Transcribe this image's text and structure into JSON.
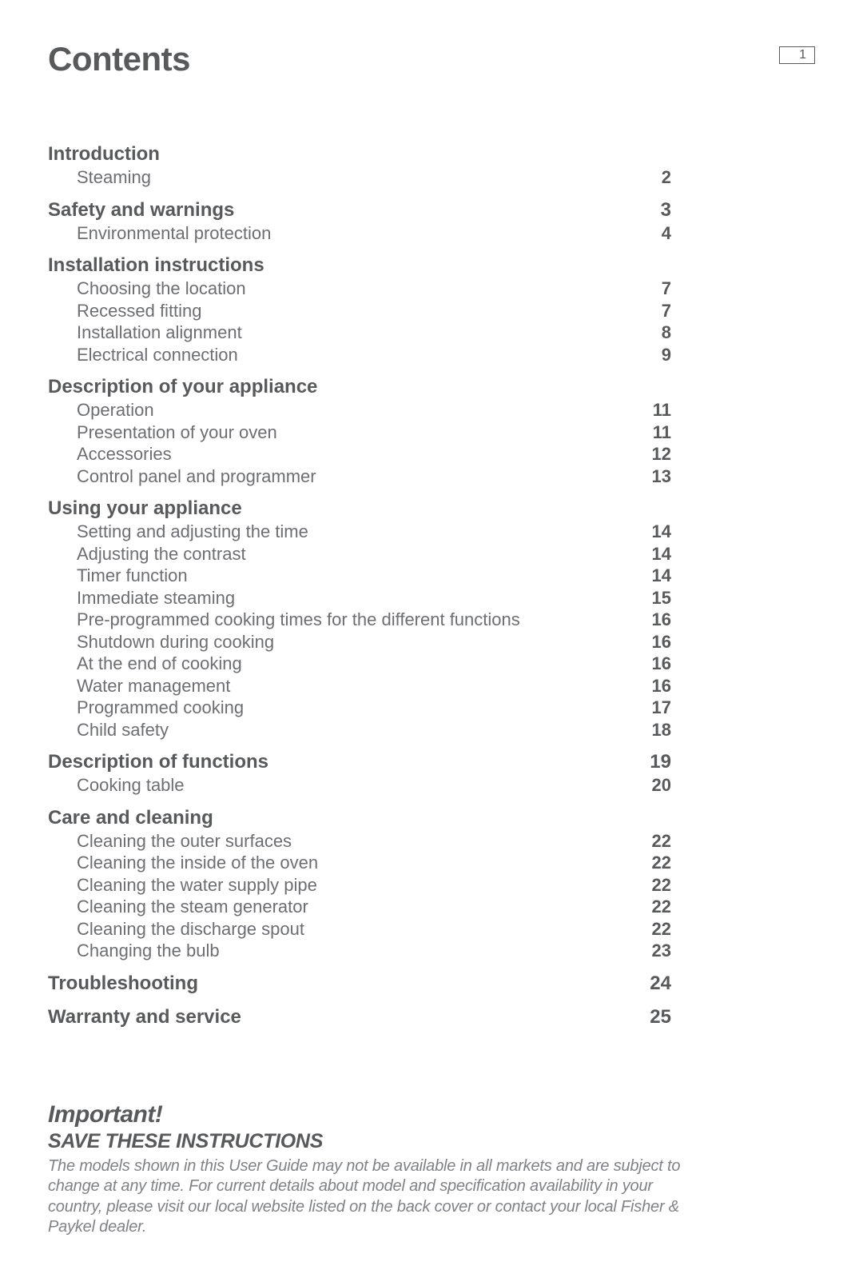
{
  "title": "Contents",
  "page_number": "1",
  "colors": {
    "text_primary": "#58595b",
    "text_secondary": "#6d6e71",
    "text_muted": "#808285",
    "background": "#ffffff"
  },
  "typography": {
    "title_fontsize": 42,
    "section_fontsize": 24,
    "sub_fontsize": 22,
    "important_title_fontsize": 30,
    "important_sub_fontsize": 25,
    "important_body_fontsize": 20
  },
  "toc": [
    {
      "title": "Introduction",
      "page": "",
      "subs": [
        {
          "label": "Steaming",
          "page": "2"
        }
      ]
    },
    {
      "title": "Safety and warnings",
      "page": "3",
      "subs": [
        {
          "label": "Environmental protection",
          "page": "4"
        }
      ]
    },
    {
      "title": "Installation instructions",
      "page": "",
      "subs": [
        {
          "label": "Choosing the location",
          "page": "7"
        },
        {
          "label": "Recessed fitting",
          "page": "7"
        },
        {
          "label": "Installation alignment",
          "page": "8"
        },
        {
          "label": "Electrical connection",
          "page": "9"
        }
      ]
    },
    {
      "title": "Description of your appliance",
      "page": "",
      "subs": [
        {
          "label": "Operation",
          "page": "11"
        },
        {
          "label": "Presentation of your oven",
          "page": "11"
        },
        {
          "label": "Accessories",
          "page": "12"
        },
        {
          "label": "Control panel and programmer",
          "page": "13"
        }
      ]
    },
    {
      "title": "Using your appliance",
      "page": "",
      "subs": [
        {
          "label": "Setting and adjusting the time",
          "page": "14"
        },
        {
          "label": "Adjusting the contrast",
          "page": "14"
        },
        {
          "label": "Timer function",
          "page": "14"
        },
        {
          "label": "Immediate steaming",
          "page": "15"
        },
        {
          "label": "Pre-programmed cooking times for the different functions",
          "page": "16"
        },
        {
          "label": "Shutdown during cooking",
          "page": "16"
        },
        {
          "label": "At the end of cooking",
          "page": "16"
        },
        {
          "label": "Water management",
          "page": "16"
        },
        {
          "label": "Programmed cooking",
          "page": "17"
        },
        {
          "label": "Child safety",
          "page": "18"
        }
      ]
    },
    {
      "title": "Description of functions",
      "page": "19",
      "subs": [
        {
          "label": "Cooking table",
          "page": "20"
        }
      ]
    },
    {
      "title": "Care and cleaning",
      "page": "",
      "subs": [
        {
          "label": "Cleaning the outer surfaces",
          "page": "22"
        },
        {
          "label": "Cleaning the inside of the oven",
          "page": "22"
        },
        {
          "label": "Cleaning the water supply pipe",
          "page": "22"
        },
        {
          "label": "Cleaning the steam generator",
          "page": "22"
        },
        {
          "label": "Cleaning the discharge spout",
          "page": "22"
        },
        {
          "label": "Changing the bulb",
          "page": "23"
        }
      ]
    },
    {
      "title": "Troubleshooting",
      "page": "24",
      "subs": []
    },
    {
      "title": "Warranty and service",
      "page": "25",
      "subs": []
    }
  ],
  "important": {
    "title": "Important!",
    "subtitle": "SAVE THESE INSTRUCTIONS",
    "body": "The models shown in this User Guide may not be available in all markets and are subject to change at any time. For current details about model and specification availability in your country, please visit our local website listed on the back cover or contact your local Fisher & Paykel dealer."
  }
}
